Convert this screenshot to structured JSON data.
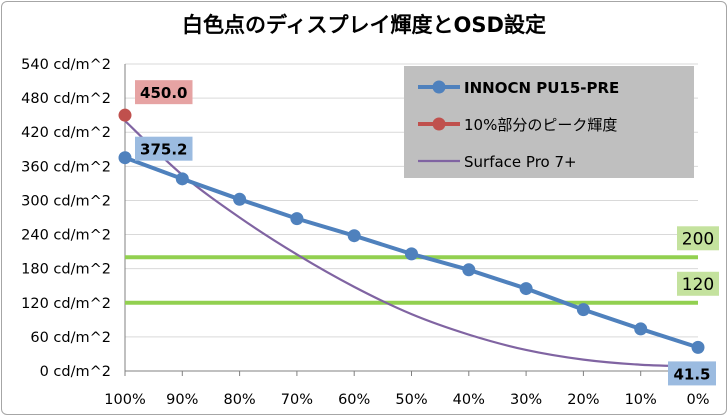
{
  "chart_data": {
    "type": "line",
    "title": "白色点のディスプレイ輝度とOSD設定",
    "xlabel": "",
    "ylabel": "",
    "categories": [
      "100%",
      "90%",
      "80%",
      "70%",
      "60%",
      "50%",
      "40%",
      "30%",
      "20%",
      "10%",
      "0%"
    ],
    "ylim": [
      0,
      540
    ],
    "yticks": [
      0,
      60,
      120,
      180,
      240,
      300,
      360,
      420,
      480,
      540
    ],
    "ytick_labels": [
      "0 cd/m^2",
      "60 cd/m^2",
      "120 cd/m^2",
      "180 cd/m^2",
      "240 cd/m^2",
      "300 cd/m^2",
      "360 cd/m^2",
      "420 cd/m^2",
      "480 cd/m^2",
      "540 cd/m^2"
    ],
    "grid": true,
    "legend_position": "top-right",
    "series": [
      {
        "name": "INNOCN PU15-PRE",
        "color": "#4f81bd",
        "marker": "circle",
        "values": [
          375.2,
          338,
          302,
          268,
          238,
          206,
          178,
          145,
          108,
          74,
          41.5
        ]
      },
      {
        "name": "10%部分のピーク輝度",
        "color": "#c0504d",
        "marker": "circle",
        "values": [
          450.0,
          null,
          null,
          null,
          null,
          null,
          null,
          null,
          null,
          null,
          null
        ]
      },
      {
        "name": "Surface Pro 7+",
        "color": "#8064a2",
        "marker": "none",
        "values": [
          440,
          345,
          270,
          205,
          148,
          100,
          64,
          37,
          20,
          11,
          8
        ]
      }
    ],
    "data_labels": [
      {
        "text": "450.0",
        "series": "10%部分のピーク輝度",
        "index": 0,
        "bg": "#e6a3a3"
      },
      {
        "text": "375.2",
        "series": "INNOCN PU15-PRE",
        "index": 0,
        "bg": "#9bbbe0"
      },
      {
        "text": "41.5",
        "series": "INNOCN PU15-PRE",
        "index": 10,
        "bg": "#9bbbe0"
      }
    ],
    "reference_lines": [
      {
        "value": 200,
        "label": "200",
        "color": "#92d050",
        "label_bg": "#c4e29e"
      },
      {
        "value": 120,
        "label": "120",
        "color": "#92d050",
        "label_bg": "#c4e29e"
      }
    ],
    "legend_bg": "#bfbfbf"
  }
}
